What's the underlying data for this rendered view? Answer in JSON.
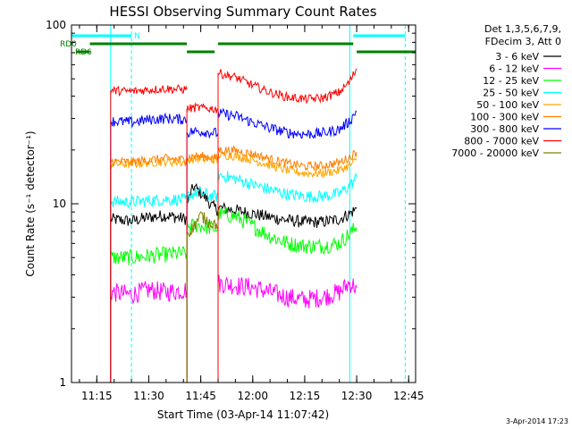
{
  "chart_data": {
    "type": "line",
    "title": "HESSI Observing Summary Count Rates",
    "xlabel": "Start Time (03-Apr-14 11:07:42)",
    "ylabel": "Count Rate (s⁻¹ detector⁻¹)",
    "x_unit": "time of day (HH:MM), 03-Apr-2014",
    "y_scale": "log",
    "ylim": [
      1,
      100
    ],
    "xlim": [
      "11:07:42",
      "12:47:00"
    ],
    "x_ticks": [
      "11:15",
      "11:30",
      "11:45",
      "12:00",
      "12:15",
      "12:30",
      "12:45"
    ],
    "y_ticks": [
      "1",
      "10",
      "100"
    ],
    "legend_header": [
      "Det 1,3,5,6,7,9,",
      "FDecim 3, Att 0"
    ],
    "legend_placement": "right, outside plot",
    "footer_stamp": "3-Apr-2014 17:23",
    "series": [
      {
        "name": "3 - 6 keV",
        "color": "#000000",
        "segments": [
          [
            [
              "11:19",
              8.2
            ],
            [
              "11:25",
              8.0
            ],
            [
              "11:30",
              8.4
            ],
            [
              "11:35",
              8.6
            ],
            [
              "11:41",
              8.2
            ]
          ],
          [
            [
              "11:41",
              10.0
            ],
            [
              "11:43",
              12.5
            ],
            [
              "11:45",
              11.5
            ],
            [
              "11:47",
              10.5
            ],
            [
              "11:48",
              9.8
            ],
            [
              "11:50",
              9.2
            ]
          ],
          [
            [
              "11:50",
              9.5
            ],
            [
              "11:55",
              9.2
            ],
            [
              "12:00",
              8.8
            ],
            [
              "12:05",
              8.4
            ],
            [
              "12:10",
              8.1
            ],
            [
              "12:15",
              7.9
            ],
            [
              "12:20",
              7.9
            ],
            [
              "12:25",
              8.2
            ],
            [
              "12:28",
              8.8
            ],
            [
              "12:30",
              9.4
            ]
          ]
        ]
      },
      {
        "name": "6 - 12 keV",
        "color": "#ff00ff",
        "segments": [
          [
            [
              "11:19",
              3.2
            ],
            [
              "11:25",
              3.1
            ],
            [
              "11:30",
              3.3
            ],
            [
              "11:35",
              3.2
            ],
            [
              "11:41",
              3.3
            ]
          ],
          [
            [
              "11:50",
              3.6
            ],
            [
              "11:55",
              3.5
            ],
            [
              "12:00",
              3.4
            ],
            [
              "12:05",
              3.2
            ],
            [
              "12:10",
              3.0
            ],
            [
              "12:15",
              2.9
            ],
            [
              "12:20",
              3.0
            ],
            [
              "12:25",
              3.2
            ],
            [
              "12:28",
              3.6
            ],
            [
              "12:30",
              3.4
            ]
          ]
        ]
      },
      {
        "name": "12 - 25 keV",
        "color": "#00ff00",
        "segments": [
          [
            [
              "11:19",
              5.0
            ],
            [
              "11:25",
              5.0
            ],
            [
              "11:30",
              5.1
            ],
            [
              "11:35",
              5.2
            ],
            [
              "11:41",
              5.3
            ]
          ],
          [
            [
              "11:41",
              7.4
            ],
            [
              "11:44",
              7.6
            ],
            [
              "11:47",
              7.4
            ],
            [
              "11:50",
              7.2
            ]
          ],
          [
            [
              "11:50",
              8.8
            ],
            [
              "11:55",
              8.5
            ],
            [
              "12:00",
              7.5
            ],
            [
              "12:05",
              6.6
            ],
            [
              "12:10",
              6.0
            ],
            [
              "12:15",
              5.8
            ],
            [
              "12:20",
              5.8
            ],
            [
              "12:25",
              6.0
            ],
            [
              "12:28",
              6.8
            ],
            [
              "12:30",
              7.4
            ]
          ]
        ]
      },
      {
        "name": "25 - 50 keV",
        "color": "#00ffff",
        "segments": [
          [
            [
              "11:19",
              10.3
            ],
            [
              "11:25",
              10.2
            ],
            [
              "11:30",
              10.4
            ],
            [
              "11:35",
              10.6
            ],
            [
              "11:41",
              10.5
            ]
          ],
          [
            [
              "11:41",
              11.0
            ],
            [
              "11:44",
              11.6
            ],
            [
              "11:47",
              11.2
            ],
            [
              "11:50",
              10.9
            ]
          ],
          [
            [
              "11:50",
              14.5
            ],
            [
              "11:55",
              13.8
            ],
            [
              "12:00",
              12.8
            ],
            [
              "12:05",
              12.0
            ],
            [
              "12:10",
              11.3
            ],
            [
              "12:15",
              11.0
            ],
            [
              "12:20",
              11.0
            ],
            [
              "12:25",
              11.4
            ],
            [
              "12:28",
              12.6
            ],
            [
              "12:30",
              14.0
            ]
          ]
        ]
      },
      {
        "name": "50 - 100 keV",
        "color": "#ffa500",
        "segments": [
          [
            [
              "11:19",
              16.8
            ],
            [
              "11:25",
              16.6
            ],
            [
              "11:30",
              17.0
            ],
            [
              "11:35",
              17.2
            ],
            [
              "11:41",
              17.0
            ]
          ],
          [
            [
              "11:41",
              17.6
            ],
            [
              "11:44",
              17.9
            ],
            [
              "11:47",
              17.7
            ],
            [
              "11:50",
              17.5
            ]
          ],
          [
            [
              "11:50",
              18.8
            ],
            [
              "11:55",
              18.5
            ],
            [
              "12:00",
              17.6
            ],
            [
              "12:05",
              16.4
            ],
            [
              "12:10",
              15.4
            ],
            [
              "12:15",
              14.8
            ],
            [
              "12:20",
              14.8
            ],
            [
              "12:25",
              15.4
            ],
            [
              "12:28",
              16.4
            ],
            [
              "12:30",
              17.5
            ]
          ]
        ]
      },
      {
        "name": "100 - 300 keV",
        "color": "#ff7f00",
        "segments": [
          [
            [
              "11:19",
              17.3
            ],
            [
              "11:25",
              17.1
            ],
            [
              "11:30",
              17.6
            ],
            [
              "11:35",
              17.9
            ],
            [
              "11:41",
              17.6
            ]
          ],
          [
            [
              "11:41",
              18.2
            ],
            [
              "11:44",
              18.5
            ],
            [
              "11:47",
              18.3
            ],
            [
              "11:50",
              18.0
            ]
          ],
          [
            [
              "11:50",
              20.0
            ],
            [
              "11:55",
              19.8
            ],
            [
              "12:00",
              19.0
            ],
            [
              "12:05",
              17.8
            ],
            [
              "12:10",
              16.8
            ],
            [
              "12:15",
              16.2
            ],
            [
              "12:20",
              16.3
            ],
            [
              "12:25",
              17.0
            ],
            [
              "12:28",
              18.2
            ],
            [
              "12:30",
              19.5
            ]
          ]
        ]
      },
      {
        "name": "300 - 800 keV",
        "color": "#0000ff",
        "segments": [
          [
            [
              "11:19",
              29.0
            ],
            [
              "11:25",
              28.6
            ],
            [
              "11:30",
              29.5
            ],
            [
              "11:35",
              30.0
            ],
            [
              "11:41",
              29.6
            ]
          ],
          [
            [
              "11:41",
              25.0
            ],
            [
              "11:44",
              25.5
            ],
            [
              "11:47",
              25.2
            ],
            [
              "11:50",
              24.8
            ]
          ],
          [
            [
              "11:50",
              32.0
            ],
            [
              "11:55",
              31.0
            ],
            [
              "12:00",
              28.5
            ],
            [
              "12:05",
              26.5
            ],
            [
              "12:10",
              25.0
            ],
            [
              "12:15",
              24.5
            ],
            [
              "12:20",
              24.8
            ],
            [
              "12:25",
              26.0
            ],
            [
              "12:28",
              29.0
            ],
            [
              "12:30",
              33.0
            ]
          ]
        ]
      },
      {
        "name": "800 - 7000 keV",
        "color": "#ff0000",
        "segments": [
          [
            [
              "11:19",
              43.0
            ],
            [
              "11:25",
              42.5
            ],
            [
              "11:30",
              43.5
            ],
            [
              "11:35",
              44.0
            ],
            [
              "11:41",
              43.5
            ]
          ],
          [
            [
              "11:41",
              34.0
            ],
            [
              "11:44",
              34.5
            ],
            [
              "11:47",
              34.2
            ],
            [
              "11:50",
              33.8
            ]
          ],
          [
            [
              "11:50",
              54.0
            ],
            [
              "11:55",
              51.0
            ],
            [
              "12:00",
              46.0
            ],
            [
              "12:05",
              42.0
            ],
            [
              "12:10",
              39.5
            ],
            [
              "12:15",
              38.5
            ],
            [
              "12:20",
              39.0
            ],
            [
              "12:25",
              42.0
            ],
            [
              "12:28",
              48.0
            ],
            [
              "12:30",
              57.0
            ]
          ]
        ]
      },
      {
        "name": "7000 - 20000 keV",
        "color": "#808000",
        "segments": [
          [
            [
              "11:41",
              6.8
            ],
            [
              "11:43",
              7.4
            ],
            [
              "11:45",
              8.6
            ],
            [
              "11:47",
              8.0
            ],
            [
              "11:50",
              7.6
            ]
          ]
        ]
      }
    ],
    "annotations": {
      "bars": [
        {
          "label": "N",
          "color": "#00ffff",
          "intervals": [
            [
              "11:07:42",
              "11:25"
            ],
            [
              "12:29",
              "12:44"
            ]
          ]
        },
        {
          "label": "RD0",
          "color": "#008000",
          "intervals": [
            [
              "11:13",
              "11:41"
            ],
            [
              "11:50",
              "12:29"
            ]
          ]
        },
        {
          "label": "RD6",
          "color": "#008000",
          "intervals": [
            [
              "11:09",
              "11:13"
            ],
            [
              "11:41",
              "11:49"
            ],
            [
              "12:30",
              "12:47"
            ]
          ]
        }
      ],
      "vlines_solid": [
        {
          "time": "11:19",
          "color": "#00ffff"
        },
        {
          "time": "12:28",
          "color": "#00ffff"
        }
      ],
      "vlines_dashed": [
        {
          "time": "11:25",
          "color": "#00ffff"
        },
        {
          "time": "12:44",
          "color": "#00ffff"
        }
      ]
    }
  }
}
